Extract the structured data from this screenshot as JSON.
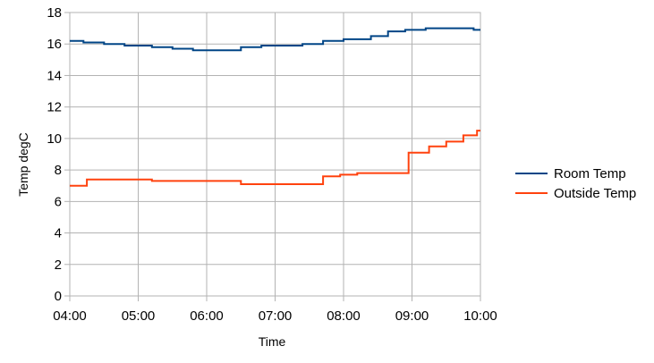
{
  "chart_data": {
    "type": "line",
    "title": "",
    "xlabel": "Time",
    "ylabel": "Temp degC",
    "x_ticks": [
      "04:00",
      "05:00",
      "06:00",
      "07:00",
      "08:00",
      "09:00",
      "10:00"
    ],
    "x_range_hours": [
      4,
      10
    ],
    "ylim": [
      0,
      18
    ],
    "y_ticks": [
      0,
      2,
      4,
      6,
      8,
      10,
      12,
      14,
      16,
      18
    ],
    "grid": true,
    "legend_position": "right",
    "series": [
      {
        "name": "Room Temp",
        "color": "#004586",
        "step": true,
        "points": [
          [
            "04:00",
            16.2
          ],
          [
            "04:12",
            16.1
          ],
          [
            "04:30",
            16.0
          ],
          [
            "04:48",
            15.9
          ],
          [
            "05:12",
            15.8
          ],
          [
            "05:30",
            15.7
          ],
          [
            "05:48",
            15.6
          ],
          [
            "06:30",
            15.8
          ],
          [
            "06:48",
            15.9
          ],
          [
            "07:24",
            16.0
          ],
          [
            "07:42",
            16.2
          ],
          [
            "08:00",
            16.3
          ],
          [
            "08:24",
            16.5
          ],
          [
            "08:39",
            16.8
          ],
          [
            "08:54",
            16.9
          ],
          [
            "09:12",
            17.0
          ],
          [
            "09:36",
            17.0
          ],
          [
            "09:54",
            16.9
          ],
          [
            "10:00",
            16.9
          ]
        ]
      },
      {
        "name": "Outside Temp",
        "color": "#ff420e",
        "step": true,
        "points": [
          [
            "04:00",
            7.0
          ],
          [
            "04:15",
            7.4
          ],
          [
            "05:12",
            7.3
          ],
          [
            "06:30",
            7.1
          ],
          [
            "07:42",
            7.6
          ],
          [
            "07:57",
            7.7
          ],
          [
            "08:12",
            7.8
          ],
          [
            "08:57",
            9.1
          ],
          [
            "09:15",
            9.5
          ],
          [
            "09:30",
            9.8
          ],
          [
            "09:45",
            10.2
          ],
          [
            "09:57",
            10.5
          ],
          [
            "10:00",
            10.5
          ]
        ]
      }
    ]
  }
}
